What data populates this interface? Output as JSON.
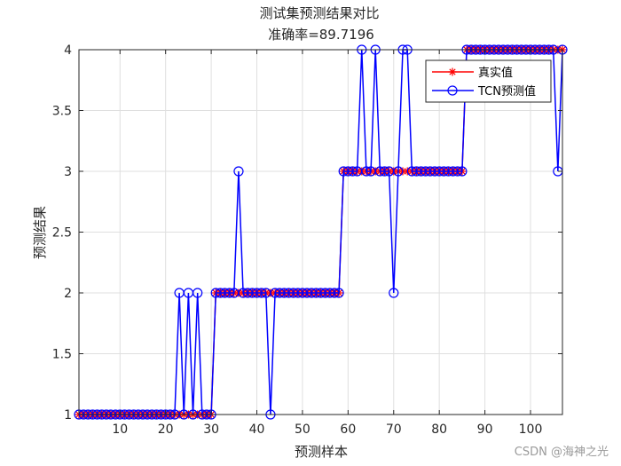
{
  "chart_data": {
    "type": "line",
    "title": "测试集预测结果对比",
    "subtitle": "准确率=89.7196",
    "xlabel": "预测样本",
    "ylabel": "预测结果",
    "xlim": [
      1,
      107
    ],
    "ylim": [
      1,
      4
    ],
    "xticks": [
      10,
      20,
      30,
      40,
      50,
      60,
      70,
      80,
      90,
      100
    ],
    "yticks": [
      1,
      1.5,
      2,
      2.5,
      3,
      3.5,
      4
    ],
    "xtick_labels": [
      "10",
      "20",
      "30",
      "40",
      "50",
      "60",
      "70",
      "80",
      "90",
      "100"
    ],
    "ytick_labels": [
      "1",
      "1.5",
      "2",
      "2.5",
      "3",
      "3.5",
      "4"
    ],
    "grid": true,
    "legend_position": "top-right",
    "x": [
      1,
      2,
      3,
      4,
      5,
      6,
      7,
      8,
      9,
      10,
      11,
      12,
      13,
      14,
      15,
      16,
      17,
      18,
      19,
      20,
      21,
      22,
      23,
      24,
      25,
      26,
      27,
      28,
      29,
      30,
      31,
      32,
      33,
      34,
      35,
      36,
      37,
      38,
      39,
      40,
      41,
      42,
      43,
      44,
      45,
      46,
      47,
      48,
      49,
      50,
      51,
      52,
      53,
      54,
      55,
      56,
      57,
      58,
      59,
      60,
      61,
      62,
      63,
      64,
      65,
      66,
      67,
      68,
      69,
      70,
      71,
      72,
      73,
      74,
      75,
      76,
      77,
      78,
      79,
      80,
      81,
      82,
      83,
      84,
      85,
      86,
      87,
      88,
      89,
      90,
      91,
      92,
      93,
      94,
      95,
      96,
      97,
      98,
      99,
      100,
      101,
      102,
      103,
      104,
      105,
      106,
      107
    ],
    "series": [
      {
        "name": "真实值",
        "color": "#ff0000",
        "marker": "asterisk",
        "values": [
          1,
          1,
          1,
          1,
          1,
          1,
          1,
          1,
          1,
          1,
          1,
          1,
          1,
          1,
          1,
          1,
          1,
          1,
          1,
          1,
          1,
          1,
          1,
          1,
          1,
          1,
          1,
          1,
          1,
          1,
          2,
          2,
          2,
          2,
          2,
          2,
          2,
          2,
          2,
          2,
          2,
          2,
          2,
          2,
          2,
          2,
          2,
          2,
          2,
          2,
          2,
          2,
          2,
          2,
          2,
          2,
          2,
          2,
          3,
          3,
          3,
          3,
          3,
          3,
          3,
          3,
          3,
          3,
          3,
          3,
          3,
          3,
          3,
          3,
          3,
          3,
          3,
          3,
          3,
          3,
          3,
          3,
          3,
          3,
          3,
          4,
          4,
          4,
          4,
          4,
          4,
          4,
          4,
          4,
          4,
          4,
          4,
          4,
          4,
          4,
          4,
          4,
          4,
          4,
          4,
          4,
          4
        ]
      },
      {
        "name": "TCN预测值",
        "color": "#0000ff",
        "marker": "circle",
        "values": [
          1,
          1,
          1,
          1,
          1,
          1,
          1,
          1,
          1,
          1,
          1,
          1,
          1,
          1,
          1,
          1,
          1,
          1,
          1,
          1,
          1,
          1,
          2,
          1,
          2,
          1,
          2,
          1,
          1,
          1,
          2,
          2,
          2,
          2,
          2,
          3,
          2,
          2,
          2,
          2,
          2,
          2,
          1,
          2,
          2,
          2,
          2,
          2,
          2,
          2,
          2,
          2,
          2,
          2,
          2,
          2,
          2,
          2,
          3,
          3,
          3,
          3,
          4,
          3,
          3,
          4,
          3,
          3,
          3,
          2,
          3,
          4,
          4,
          3,
          3,
          3,
          3,
          3,
          3,
          3,
          3,
          3,
          3,
          3,
          3,
          4,
          4,
          4,
          4,
          4,
          4,
          4,
          4,
          4,
          4,
          4,
          4,
          4,
          4,
          4,
          4,
          4,
          4,
          4,
          4,
          3,
          4
        ]
      }
    ]
  },
  "watermark": "CSDN @海神之光"
}
